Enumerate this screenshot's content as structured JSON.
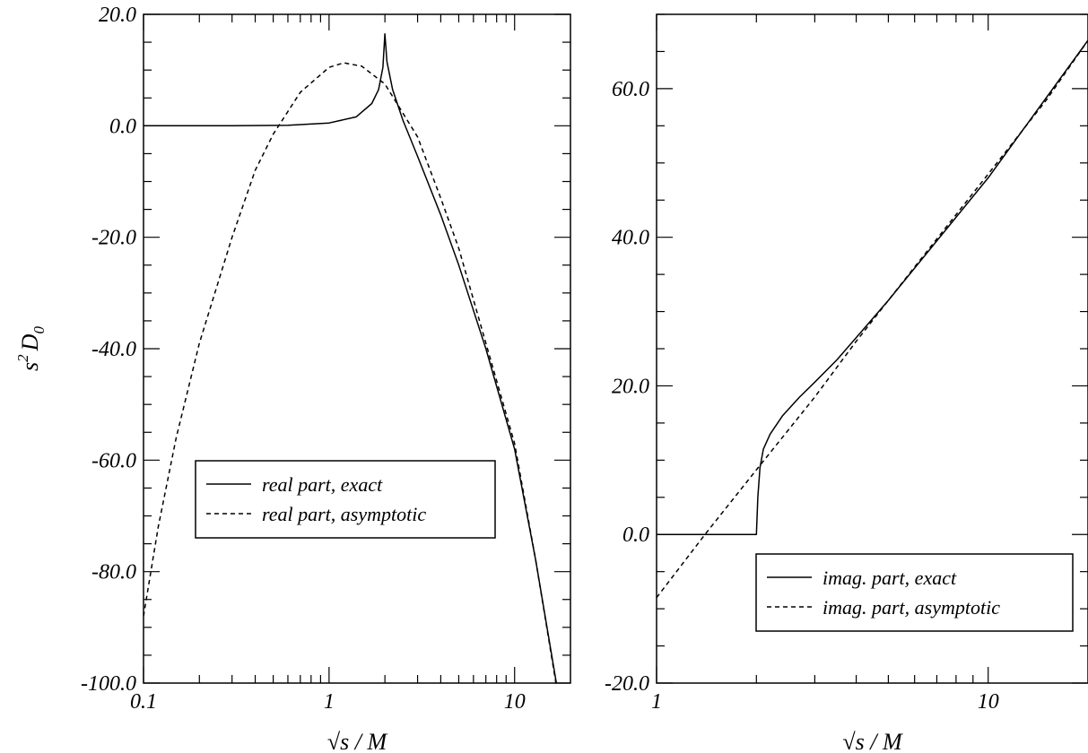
{
  "chart_data": [
    {
      "type": "line",
      "xscale": "log",
      "xlim": [
        0.1,
        20
      ],
      "ylim": [
        -100,
        20
      ],
      "xticks": [
        0.1,
        1,
        10
      ],
      "xtick_labels": [
        "0.1",
        "1",
        "10"
      ],
      "yticks": [
        20,
        0,
        -20,
        -40,
        -60,
        -80,
        -100
      ],
      "ytick_labels": [
        "20.0",
        "0.0",
        "-20.0",
        "-40.0",
        "-60.0",
        "-80.0",
        "-100.0"
      ],
      "xlabel": "√s / M",
      "ylabel_base": "s",
      "ylabel_sup": "2",
      "ylabel_main": "D",
      "ylabel_sub": "0",
      "legend_position": "lower-center",
      "series": [
        {
          "name": "real part, exact",
          "style": "solid",
          "points": [
            [
              0.1,
              0.0
            ],
            [
              0.3,
              0.0
            ],
            [
              0.6,
              0.1
            ],
            [
              1.0,
              0.5
            ],
            [
              1.4,
              1.6
            ],
            [
              1.7,
              4.0
            ],
            [
              1.85,
              6.5
            ],
            [
              1.95,
              10.5
            ],
            [
              2.0,
              16.5
            ],
            [
              2.05,
              11.5
            ],
            [
              2.2,
              6.5
            ],
            [
              2.5,
              1.0
            ],
            [
              3.0,
              -5.5
            ],
            [
              4.0,
              -16.0
            ],
            [
              5.0,
              -25.0
            ],
            [
              7.0,
              -40.0
            ],
            [
              10.0,
              -58.0
            ],
            [
              13.0,
              -78.0
            ],
            [
              16.8,
              -100.0
            ]
          ]
        },
        {
          "name": "real part, asymptotic",
          "style": "dashed",
          "points": [
            [
              0.1,
              -88.0
            ],
            [
              0.12,
              -72.0
            ],
            [
              0.15,
              -56.0
            ],
            [
              0.2,
              -39.0
            ],
            [
              0.3,
              -20.0
            ],
            [
              0.4,
              -8.0
            ],
            [
              0.5,
              -1.5
            ],
            [
              0.7,
              6.0
            ],
            [
              1.0,
              10.5
            ],
            [
              1.2,
              11.3
            ],
            [
              1.5,
              10.7
            ],
            [
              2.0,
              7.5
            ],
            [
              3.0,
              -2.0
            ],
            [
              4.0,
              -13.0
            ],
            [
              5.0,
              -22.0
            ],
            [
              7.0,
              -39.0
            ],
            [
              10.0,
              -57.0
            ],
            [
              13.0,
              -78.0
            ],
            [
              16.7,
              -100.0
            ]
          ]
        }
      ]
    },
    {
      "type": "line",
      "xscale": "log",
      "xlim": [
        1,
        20
      ],
      "ylim": [
        -20,
        70
      ],
      "xticks": [
        1,
        10
      ],
      "xtick_labels": [
        "1",
        "10"
      ],
      "yticks": [
        60,
        40,
        20,
        0,
        -20
      ],
      "ytick_labels": [
        "60.0",
        "40.0",
        "20.0",
        "0.0",
        "-20.0"
      ],
      "xlabel": "√s / M",
      "legend_position": "lower-right",
      "series": [
        {
          "name": "imag. part, exact",
          "style": "solid",
          "points": [
            [
              1.0,
              0.0
            ],
            [
              2.0,
              0.0
            ],
            [
              2.02,
              5.0
            ],
            [
              2.05,
              9.0
            ],
            [
              2.1,
              11.5
            ],
            [
              2.2,
              13.5
            ],
            [
              2.4,
              16.0
            ],
            [
              2.7,
              18.5
            ],
            [
              3.0,
              20.5
            ],
            [
              3.5,
              23.5
            ],
            [
              4.0,
              26.5
            ],
            [
              5.0,
              31.5
            ],
            [
              7.0,
              39.5
            ],
            [
              10.0,
              48.0
            ],
            [
              14.0,
              57.0
            ],
            [
              20.0,
              66.5
            ]
          ]
        },
        {
          "name": "imag. part, asymptotic",
          "style": "dashed",
          "points": [
            [
              1.0,
              -8.5
            ],
            [
              1.4,
              0.0
            ],
            [
              2.0,
              8.7
            ],
            [
              3.0,
              18.5
            ],
            [
              4.0,
              26.0
            ],
            [
              6.0,
              36.0
            ],
            [
              10.0,
              48.5
            ],
            [
              15.0,
              58.5
            ],
            [
              20.0,
              66.5
            ]
          ]
        }
      ]
    }
  ]
}
